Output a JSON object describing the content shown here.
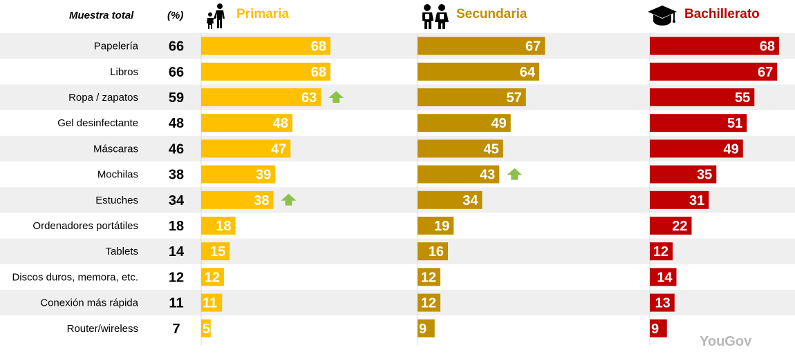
{
  "header": {
    "total_label": "Muestra total",
    "pct_label": "(%)"
  },
  "columns": [
    {
      "key": "primaria",
      "title": "Primaria",
      "icon": "parent-child-icon",
      "color": "#FFC000",
      "title_color": "#FFC000"
    },
    {
      "key": "secundaria",
      "title": "Secundaria",
      "icon": "students-icon",
      "color": "#BF8F00",
      "title_color": "#BF8F00"
    },
    {
      "key": "bachillerato",
      "title": "Bachillerato",
      "icon": "graduation-cap-icon",
      "color": "#C00000",
      "title_color": "#C00000"
    }
  ],
  "up_arrow_color": "#8BC34A",
  "logo": "YouGov",
  "chart_data": {
    "type": "bar",
    "orientation": "horizontal",
    "unit": "%",
    "xlim": [
      0,
      100
    ],
    "categories": [
      "Papelería",
      "Libros",
      "Ropa / zapatos",
      "Gel desinfectante",
      "Máscaras",
      "Mochilas",
      "Estuches",
      "Ordenadores portátiles",
      "Tablets",
      "Discos duros, memora, etc.",
      "Conexión más rápida",
      "Router/wireless"
    ],
    "total": [
      66,
      66,
      59,
      48,
      46,
      38,
      34,
      18,
      14,
      12,
      11,
      7
    ],
    "series": [
      {
        "name": "Primaria",
        "values": [
          68,
          68,
          63,
          48,
          47,
          39,
          38,
          18,
          15,
          12,
          11,
          5
        ],
        "up_arrows": [
          false,
          false,
          true,
          false,
          false,
          false,
          true,
          false,
          false,
          false,
          false,
          false
        ]
      },
      {
        "name": "Secundaria",
        "values": [
          67,
          64,
          57,
          49,
          45,
          43,
          34,
          19,
          16,
          12,
          12,
          9
        ],
        "up_arrows": [
          false,
          false,
          false,
          false,
          false,
          true,
          false,
          false,
          false,
          false,
          false,
          false
        ]
      },
      {
        "name": "Bachillerato",
        "values": [
          68,
          67,
          55,
          51,
          49,
          35,
          31,
          22,
          12,
          14,
          13,
          9
        ],
        "up_arrows": [
          false,
          false,
          false,
          false,
          false,
          false,
          false,
          false,
          false,
          false,
          false,
          false
        ]
      }
    ]
  }
}
